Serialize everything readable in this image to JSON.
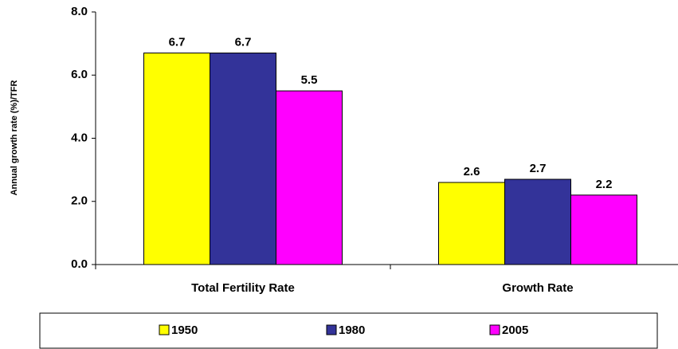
{
  "chart_data": {
    "type": "bar",
    "y_label": "Annual growth rate (%)/TFR",
    "categories": [
      "Total Fertility Rate",
      "Growth Rate"
    ],
    "series": [
      {
        "name": "1950",
        "color": "#ffff00",
        "values": [
          6.7,
          2.6
        ]
      },
      {
        "name": "1980",
        "color": "#333399",
        "values": [
          6.7,
          2.7
        ]
      },
      {
        "name": "2005",
        "color": "#ff00ff",
        "values": [
          5.5,
          2.2
        ]
      }
    ],
    "ylim": [
      0,
      8
    ],
    "yticks": [
      {
        "value": 0,
        "label": "0.0"
      },
      {
        "value": 2,
        "label": "2.0"
      },
      {
        "value": 4,
        "label": "4.0"
      },
      {
        "value": 6,
        "label": "6.0"
      },
      {
        "value": 8,
        "label": "8.0"
      }
    ],
    "legend": "bottom"
  }
}
